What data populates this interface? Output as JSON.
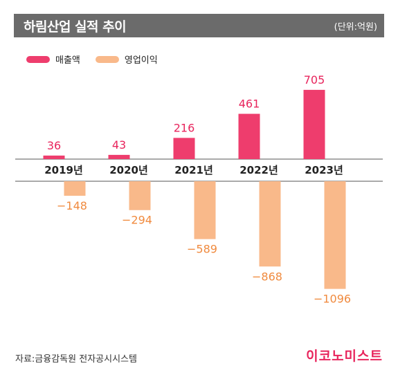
{
  "header": {
    "title": "하림산업 실적 추이",
    "unit": "(단위:억원)"
  },
  "legend": [
    {
      "label": "매출액",
      "color": "#ee3d6d"
    },
    {
      "label": "영업이익",
      "color": "#f9b98a"
    }
  ],
  "chart_data": {
    "type": "bar",
    "categories": [
      "2019년",
      "2020년",
      "2021년",
      "2022년",
      "2023년"
    ],
    "series": [
      {
        "name": "매출액",
        "values": [
          36,
          43,
          216,
          461,
          705
        ],
        "color": "#ee3d6d",
        "labelColor": "#e8245c",
        "labels": [
          "36",
          "43",
          "216",
          "461",
          "705"
        ]
      },
      {
        "name": "영업이익",
        "values": [
          -148,
          -294,
          -589,
          -868,
          -1096
        ],
        "color": "#f9b98a",
        "labelColor": "#f08a3e",
        "labels": [
          "−148",
          "−294",
          "−589",
          "−868",
          "−1096"
        ]
      }
    ],
    "axis_color": "#555555"
  },
  "footer": {
    "source": "자료:금융감독원 전자공시시스템",
    "brand": "이코노미스트"
  }
}
